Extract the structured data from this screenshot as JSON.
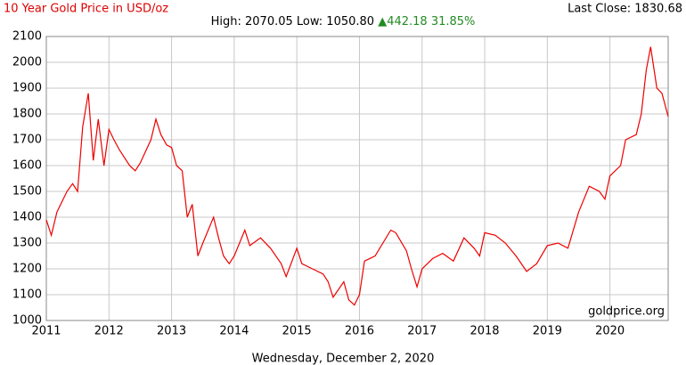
{
  "chart_data": {
    "type": "line",
    "title": "10 Year Gold Price in USD/oz",
    "summary": "High: 2070.05 Low: 1050.80",
    "change": "▲442.18 31.85%",
    "last_close": "Last Close: 1830.68",
    "source": "goldprice.org",
    "date": "Wednesday, December 2, 2020",
    "x": [
      2011.0,
      2011.08,
      2011.17,
      2011.33,
      2011.42,
      2011.5,
      2011.58,
      2011.67,
      2011.75,
      2011.83,
      2011.92,
      2012.0,
      2012.08,
      2012.17,
      2012.33,
      2012.42,
      2012.5,
      2012.67,
      2012.75,
      2012.83,
      2012.92,
      2013.0,
      2013.08,
      2013.17,
      2013.25,
      2013.33,
      2013.42,
      2013.5,
      2013.67,
      2013.75,
      2013.83,
      2013.92,
      2014.0,
      2014.17,
      2014.25,
      2014.42,
      2014.58,
      2014.75,
      2014.83,
      2015.0,
      2015.08,
      2015.25,
      2015.42,
      2015.5,
      2015.58,
      2015.75,
      2015.83,
      2015.92,
      2016.0,
      2016.08,
      2016.25,
      2016.5,
      2016.58,
      2016.75,
      2016.83,
      2016.92,
      2017.0,
      2017.17,
      2017.33,
      2017.5,
      2017.67,
      2017.83,
      2017.92,
      2018.0,
      2018.17,
      2018.33,
      2018.5,
      2018.67,
      2018.83,
      2019.0,
      2019.17,
      2019.33,
      2019.5,
      2019.67,
      2019.83,
      2019.92,
      2020.0,
      2020.17,
      2020.25,
      2020.42,
      2020.5,
      2020.58,
      2020.65,
      2020.75,
      2020.83,
      2020.93
    ],
    "series": [
      {
        "name": "Gold",
        "color": "#ee0000",
        "values": [
          1390,
          1330,
          1420,
          1500,
          1530,
          1500,
          1750,
          1880,
          1620,
          1780,
          1600,
          1740,
          1700,
          1660,
          1600,
          1580,
          1610,
          1700,
          1780,
          1720,
          1680,
          1670,
          1600,
          1580,
          1400,
          1450,
          1250,
          1300,
          1400,
          1320,
          1250,
          1220,
          1250,
          1350,
          1290,
          1320,
          1280,
          1220,
          1170,
          1280,
          1220,
          1200,
          1180,
          1150,
          1090,
          1150,
          1080,
          1060,
          1100,
          1230,
          1250,
          1350,
          1340,
          1270,
          1200,
          1130,
          1200,
          1240,
          1260,
          1230,
          1320,
          1280,
          1250,
          1340,
          1330,
          1300,
          1250,
          1190,
          1220,
          1290,
          1300,
          1280,
          1420,
          1520,
          1500,
          1470,
          1560,
          1600,
          1700,
          1720,
          1800,
          1970,
          2060,
          1900,
          1880,
          1790
        ]
      }
    ],
    "xlim": [
      2011,
      2020.93
    ],
    "xticks": [
      2011,
      2012,
      2013,
      2014,
      2015,
      2016,
      2017,
      2018,
      2019,
      2020
    ],
    "ylim": [
      1000,
      2100
    ],
    "yticks": [
      1000,
      1100,
      1200,
      1300,
      1400,
      1500,
      1600,
      1700,
      1800,
      1900,
      2000,
      2100
    ],
    "grid": true
  }
}
